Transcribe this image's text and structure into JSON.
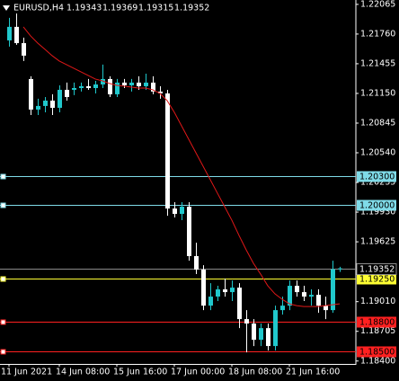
{
  "chart_data": {
    "type": "candlestick",
    "title": "EURUSD,H4",
    "categories": [
      "11 Jun 2021",
      null,
      null,
      null,
      null,
      null,
      null,
      "14 Jun 08:00",
      null,
      null,
      null,
      null,
      null,
      null,
      null,
      "15 Jun 16:00",
      null,
      null,
      null,
      null,
      null,
      null,
      null,
      "17 Jun 00:00",
      null,
      null,
      null,
      null,
      null,
      null,
      null,
      "18 Jun 08:00",
      null,
      null,
      null,
      null,
      null,
      null,
      null,
      "21 Jun 16:00",
      null,
      null,
      null,
      null,
      null,
      null,
      null
    ],
    "open": [
      1.21695,
      1.21834,
      1.21667,
      1.21298,
      1.20984,
      1.21021,
      1.21076,
      1.21002,
      1.21187,
      1.21187,
      1.21205,
      1.21224,
      1.21205,
      1.21242,
      1.21298,
      1.21141,
      1.21261,
      1.21233,
      1.21261,
      1.21224,
      1.21261,
      1.21169,
      1.2115,
      1.19967,
      1.19912,
      1.19986,
      1.19478,
      1.19339,
      1.18969,
      1.19062,
      1.19136,
      1.19108,
      1.19154,
      1.18831,
      1.18785,
      1.18618,
      1.18738,
      1.18554,
      1.18923,
      1.18969,
      1.19173,
      1.19108,
      1.19062,
      1.1908,
      1.18969,
      1.18923,
      1.19343
    ],
    "high": [
      1.21926,
      1.21972,
      1.21723,
      1.21326,
      1.21095,
      1.21113,
      1.21141,
      1.21233,
      1.21261,
      1.21261,
      1.21261,
      1.21298,
      1.21279,
      1.21446,
      1.21326,
      1.21298,
      1.21298,
      1.21298,
      1.21326,
      1.21353,
      1.21326,
      1.21224,
      1.21187,
      1.20032,
      1.20032,
      1.20032,
      1.19616,
      1.19385,
      1.192,
      1.19173,
      1.19247,
      1.19228,
      1.192,
      1.18923,
      1.18831,
      1.18785,
      1.18785,
      1.18969,
      1.19062,
      1.19228,
      1.19228,
      1.19173,
      1.19136,
      1.19136,
      1.19062,
      1.19431,
      1.19369
    ],
    "low": [
      1.21631,
      1.21649,
      1.21483,
      1.20928,
      1.20928,
      1.20956,
      1.20928,
      1.20956,
      1.21076,
      1.21132,
      1.21169,
      1.21187,
      1.2115,
      1.21205,
      1.21113,
      1.21113,
      1.21205,
      1.21169,
      1.21187,
      1.21187,
      1.21141,
      1.21095,
      1.19893,
      1.19875,
      1.19847,
      1.19431,
      1.19293,
      1.18923,
      1.18923,
      1.19016,
      1.19062,
      1.19016,
      1.18738,
      1.18489,
      1.18554,
      1.18554,
      1.18507,
      1.18507,
      1.18877,
      1.18923,
      1.19062,
      1.19016,
      1.18969,
      1.18895,
      1.18831,
      1.18895,
      1.19315
    ],
    "close": [
      1.21834,
      1.21667,
      1.21538,
      1.20984,
      1.21021,
      1.21076,
      1.21002,
      1.21187,
      1.21113,
      1.21205,
      1.21224,
      1.21205,
      1.21242,
      1.21298,
      1.21141,
      1.21261,
      1.21233,
      1.21261,
      1.21224,
      1.21261,
      1.21169,
      1.2115,
      1.19967,
      1.19912,
      1.19986,
      1.19478,
      1.19339,
      1.18969,
      1.19062,
      1.19136,
      1.19108,
      1.19154,
      1.18831,
      1.18785,
      1.18618,
      1.18738,
      1.18554,
      1.18923,
      1.18969,
      1.19173,
      1.19108,
      1.19062,
      1.1908,
      1.18969,
      1.18923,
      1.19343,
      1.19352
    ],
    "up_color": "#20c8cc",
    "down_color": "#ffffff",
    "moving_average": {
      "color": "#e01818",
      "values": [
        null,
        null,
        1.21834,
        1.21741,
        1.21667,
        1.21603,
        1.21538,
        1.21483,
        1.21446,
        1.21409,
        1.21372,
        1.21335,
        1.21298,
        1.21279,
        1.21252,
        1.21233,
        1.21224,
        1.21215,
        1.21205,
        1.21205,
        1.21187,
        1.2115,
        1.21076,
        1.20956,
        1.20817,
        1.20679,
        1.2054,
        1.20402,
        1.20263,
        1.20124,
        1.19986,
        1.19847,
        1.1969,
        1.19542,
        1.19404,
        1.19293,
        1.19173,
        1.1909,
        1.19034,
        1.18988,
        1.18969,
        1.1896,
        1.1896,
        1.1896,
        1.18969,
        1.18978,
        1.18988
      ]
    },
    "levels": [
      {
        "value": 1.203,
        "label": "1.20300",
        "color": "#7fdbe8"
      },
      {
        "value": 1.2,
        "label": "1.20000",
        "color": "#7fdbe8"
      },
      {
        "value": 1.1925,
        "label": "1.19250",
        "color": "#ffff33"
      },
      {
        "value": 1.188,
        "label": "1.18800",
        "color": "#ff2020"
      },
      {
        "value": 1.185,
        "label": "1.18500",
        "color": "#ff2020"
      }
    ],
    "ylim": [
      1.1837,
      1.2211
    ],
    "yticks": [
      1.22065,
      {
        "value": 1.2176,
        "label": "1.21760"
      },
      1.21455,
      {
        "value": 1.2115,
        "label": "1.21150"
      },
      1.20845,
      {
        "value": 1.2054,
        "label": "1.20540"
      },
      1.20235,
      {
        "value": 1.1993,
        "label": "1.19930"
      },
      1.19625,
      {
        "value": 1.1901,
        "label": "1.19010"
      },
      1.18705,
      {
        "value": 1.184,
        "label": "1.18400"
      }
    ]
  }
}
